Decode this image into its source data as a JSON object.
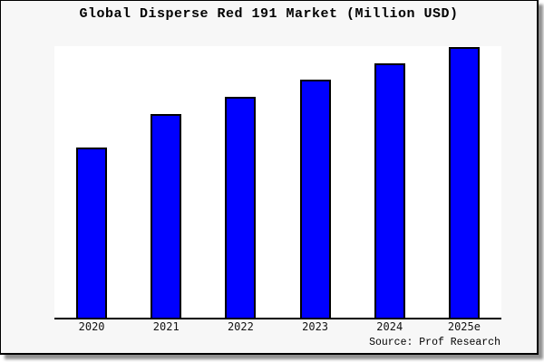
{
  "header": {
    "title": "Global Disperse Red 191 Market (Million USD)"
  },
  "footer": {
    "source": "Source: Prof Research"
  },
  "colors": {
    "bar_fill": "#0000ff",
    "bar_edge": "#000000",
    "plot_background": "#ffffff",
    "figure_background": "#f7f7f7",
    "axis_line": "#000000",
    "title_text": "#000000"
  },
  "chart_data": {
    "type": "bar",
    "title": "Global Disperse Red 191 Market (Million USD)",
    "categories": [
      "2020",
      "2021",
      "2022",
      "2023",
      "2024",
      "2025e"
    ],
    "values": [
      62.9,
      75.3,
      81.6,
      88.0,
      94.0,
      100.0
    ],
    "values_note": "relative index estimated from bar heights; no y-axis labels shown",
    "xlabel": "",
    "ylabel": "",
    "ylim": [
      0,
      100.3
    ],
    "grid": false,
    "legend": "none",
    "source_label": "Source: Prof Research"
  }
}
